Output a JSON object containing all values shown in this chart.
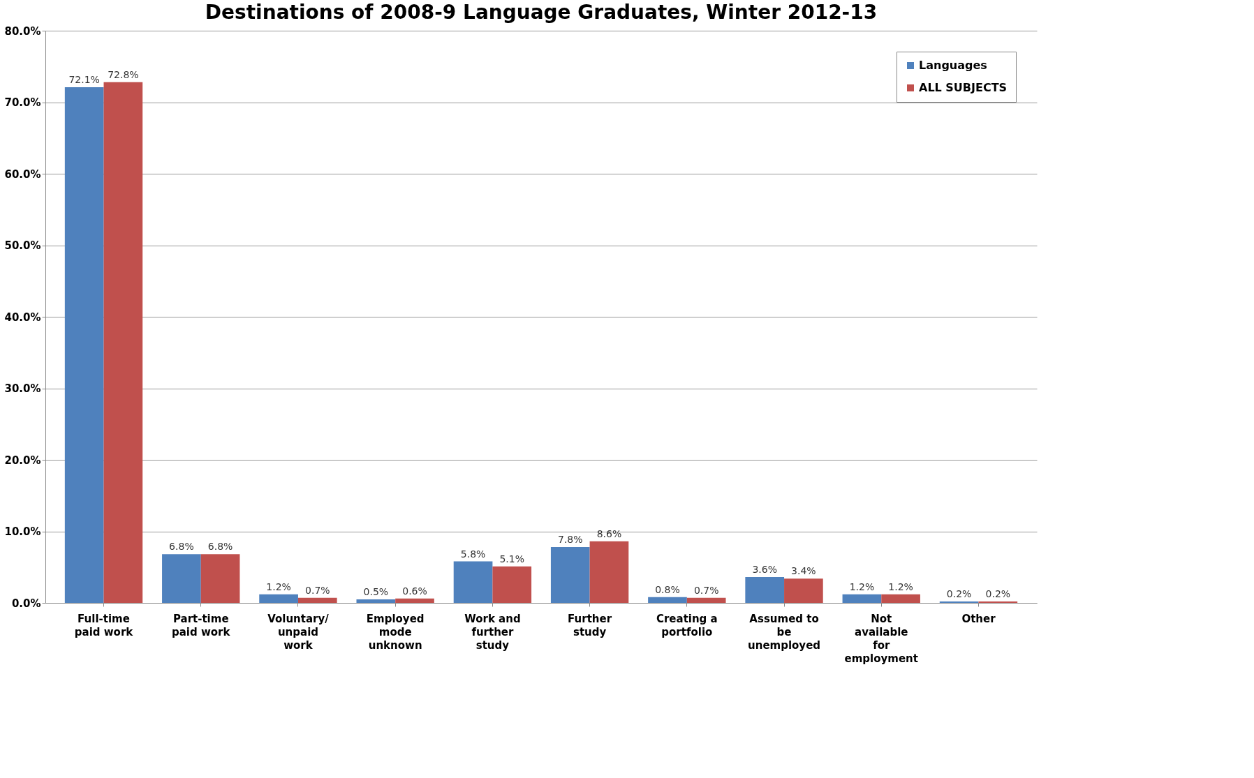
{
  "chart_data": {
    "type": "bar",
    "title": "Destinations of 2008-9 Language Graduates, Winter 2012-13",
    "categories": [
      "Full-time paid work",
      "Part-time paid work",
      "Voluntary/ unpaid work",
      "Employed mode unknown",
      "Work and further study",
      "Further study",
      "Creating a portfolio",
      "Assumed to be unemployed",
      "Not available for employment",
      "Other"
    ],
    "series": [
      {
        "name": "Languages",
        "color": "#4f81bd",
        "values": [
          72.1,
          6.8,
          1.2,
          0.5,
          5.8,
          7.8,
          0.8,
          3.6,
          1.2,
          0.2
        ],
        "value_labels": [
          "72.1%",
          "6.8%",
          "1.2%",
          "0.5%",
          "5.8%",
          "7.8%",
          "0.8%",
          "3.6%",
          "1.2%",
          "0.2%"
        ]
      },
      {
        "name": "ALL SUBJECTS",
        "color": "#c0504d",
        "values": [
          72.8,
          6.8,
          0.7,
          0.6,
          5.1,
          8.6,
          0.7,
          3.4,
          1.2,
          0.2
        ],
        "value_labels": [
          "72.8%",
          "6.8%",
          "0.7%",
          "0.6%",
          "5.1%",
          "8.6%",
          "0.7%",
          "3.4%",
          "1.2%",
          "0.2%"
        ]
      }
    ],
    "ylim": [
      0,
      80
    ],
    "yticks": [
      {
        "value": 0,
        "label": "0.0%"
      },
      {
        "value": 10,
        "label": "10.0%"
      },
      {
        "value": 20,
        "label": "20.0%"
      },
      {
        "value": 30,
        "label": "30.0%"
      },
      {
        "value": 40,
        "label": "40.0%"
      },
      {
        "value": 50,
        "label": "50.0%"
      },
      {
        "value": 60,
        "label": "60.0%"
      },
      {
        "value": 70,
        "label": "70.0%"
      },
      {
        "value": 80,
        "label": "80.0%"
      }
    ],
    "grid": "y",
    "legend": "top right"
  }
}
